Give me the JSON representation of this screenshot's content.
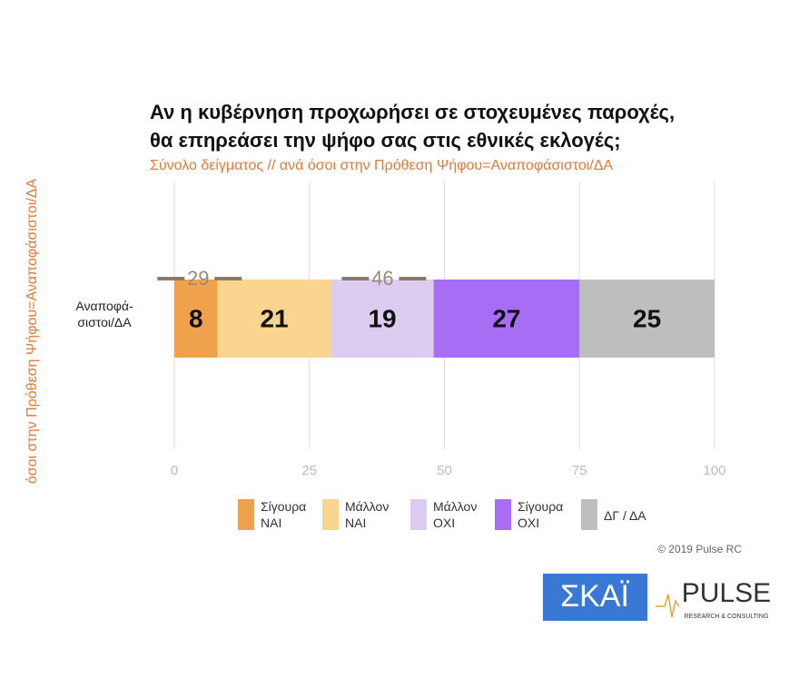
{
  "chart_data": {
    "type": "stacked_bar_horizontal",
    "title": [
      "Αν η κυβέρνηση προχωρήσει σε στοχευμένες παροχές,",
      "θα επηρεάσει την ψήφο σας στις εθνικές εκλογές;"
    ],
    "subtitle": "Σύνολο δείγματος // ανά όσοι στην Πρόθεση Ψήφου=Αναποφάσιστοι/ΔΑ",
    "y_label": "όσοι στην Πρόθεση Ψήφου=Αναποφάσιστοι/ΔΑ",
    "categories": [
      "Αναποφά- σιστοι/ΔΑ"
    ],
    "series": [
      {
        "name": "Σίγουρα ΝΑΙ",
        "color": "#f0a14c",
        "values": [
          8
        ]
      },
      {
        "name": "Μάλλον ΝΑΙ",
        "color": "#fad590",
        "values": [
          21
        ]
      },
      {
        "name": "Μάλλον ΟΧΙ",
        "color": "#dccdf0",
        "values": [
          19
        ]
      },
      {
        "name": "Σίγουρα ΟΧΙ",
        "color": "#a86df5",
        "values": [
          27
        ]
      },
      {
        "name": "ΔΓ / ΔΑ",
        "color": "#bebebe",
        "values": [
          25
        ]
      }
    ],
    "group_totals": [
      29,
      46
    ],
    "xlim": [
      0,
      100
    ],
    "xticks": [
      0,
      25,
      50,
      75,
      100
    ],
    "grid": true,
    "copyright": "© 2019 Pulse RC",
    "logos": {
      "skai": "ΣΚΑΪ",
      "pulse": "PULSE",
      "pulse_sub": "RESEARCH & CONSULTING"
    }
  }
}
